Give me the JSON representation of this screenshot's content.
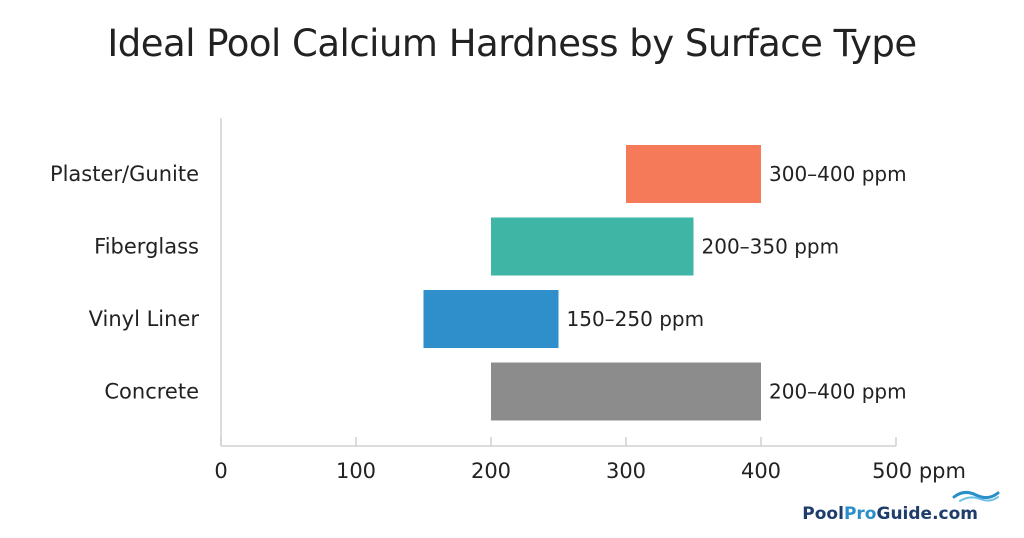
{
  "chart_data": {
    "type": "bar",
    "orientation": "horizontal",
    "subtype": "floating-range",
    "title": "Ideal Pool Calcium Hardness by Surface Type",
    "xlabel": "",
    "ylabel": "",
    "xlim": [
      0,
      500
    ],
    "xticks": [
      "0",
      "100",
      "200",
      "300",
      "400",
      "500 ppm"
    ],
    "xtick_values": [
      0,
      100,
      200,
      300,
      400,
      500
    ],
    "categories": [
      "Plaster/Gunite",
      "Fiberglass",
      "Vinyl Liner",
      "Concrete"
    ],
    "ranges": [
      {
        "category": "Plaster/Gunite",
        "low": 300,
        "high": 400,
        "label": "300–400 ppm",
        "color": "#f57a5a"
      },
      {
        "category": "Fiberglass",
        "low": 200,
        "high": 350,
        "label": "200–350 ppm",
        "color": "#3fb5a6"
      },
      {
        "category": "Vinyl Liner",
        "low": 150,
        "high": 250,
        "label": "150–250 ppm",
        "color": "#2e8fcb"
      },
      {
        "category": "Concrete",
        "low": 200,
        "high": 400,
        "label": "200–400 ppm",
        "color": "#8c8c8c"
      }
    ],
    "grid": false,
    "legend": "none"
  },
  "branding": {
    "part1": "Pool",
    "part2": "Pro",
    "part3": "Guide.com",
    "icon": "wave-icon"
  }
}
